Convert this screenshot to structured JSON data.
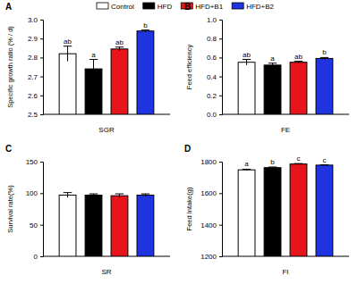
{
  "chart_data": [
    {
      "type": "bar",
      "title": "A",
      "x_label": "SGR",
      "y_label": "Specific growth ratio (% / d)",
      "ylim": [
        2.5,
        3.0
      ],
      "yticks": [
        {
          "value": 2.5,
          "label": "2.5"
        },
        2.6,
        2.7,
        2.8,
        2.9,
        {
          "value": 3,
          "label": "3.0"
        }
      ],
      "legend": "top",
      "series": [
        {
          "name": "Control",
          "color": "#ffffff",
          "values": [
            2.82
          ],
          "errors": [
            0.04
          ],
          "letters": [
            "ab"
          ]
        },
        {
          "name": "HFD",
          "color": "#000000",
          "values": [
            2.74
          ],
          "errors": [
            0.05
          ],
          "letters": [
            "a"
          ]
        },
        {
          "name": "HFD+B1",
          "color": "#e8141c",
          "values": [
            2.845
          ],
          "errors": [
            0.01
          ],
          "letters": [
            "ab"
          ]
        },
        {
          "name": "HFD+B2",
          "color": "#1f33e0",
          "values": [
            2.94
          ],
          "errors": [
            0.005
          ],
          "letters": [
            "b"
          ]
        }
      ]
    },
    {
      "type": "bar",
      "title": "B",
      "x_label": "FE",
      "y_label": "Feed efficiency",
      "ylim": [
        0,
        1
      ],
      "yticks": [
        {
          "value": 0,
          "label": "0.0"
        },
        0.2,
        0.4,
        0.6,
        0.8,
        {
          "value": 1,
          "label": "1.0"
        }
      ],
      "series": [
        {
          "color": "#ffffff",
          "values": [
            0.55
          ],
          "errors": [
            0.03
          ],
          "letters": [
            "ab"
          ]
        },
        {
          "color": "#000000",
          "values": [
            0.52
          ],
          "errors": [
            0.02
          ],
          "letters": [
            "a"
          ]
        },
        {
          "color": "#e8141c",
          "values": [
            0.55
          ],
          "errors": [
            0.01
          ],
          "letters": [
            "ab"
          ]
        },
        {
          "color": "#1f33e0",
          "values": [
            0.59
          ],
          "errors": [
            0.01
          ],
          "letters": [
            "b"
          ]
        }
      ]
    },
    {
      "type": "bar",
      "title": "C",
      "x_label": "SR",
      "y_label": "Survival rate(%)",
      "ylim": [
        0,
        150
      ],
      "yticks": [
        0,
        50,
        100,
        150
      ],
      "series": [
        {
          "color": "#ffffff",
          "values": [
            97
          ],
          "errors": [
            4
          ]
        },
        {
          "color": "#000000",
          "values": [
            97
          ],
          "errors": [
            2
          ]
        },
        {
          "color": "#e8141c",
          "values": [
            96
          ],
          "errors": [
            3
          ]
        },
        {
          "color": "#1f33e0",
          "values": [
            97
          ],
          "errors": [
            2
          ]
        }
      ]
    },
    {
      "type": "bar",
      "title": "D",
      "x_label": "FI",
      "y_label": "Feed Intake(g)",
      "ylim": [
        1200,
        1800
      ],
      "yticks": [
        1200,
        1400,
        1600,
        1800
      ],
      "series": [
        {
          "color": "#ffffff",
          "values": [
            1748
          ],
          "errors": [
            4
          ],
          "letters": [
            "a"
          ]
        },
        {
          "color": "#000000",
          "values": [
            1762
          ],
          "errors": [
            4
          ],
          "letters": [
            "b"
          ]
        },
        {
          "color": "#e8141c",
          "values": [
            1785
          ],
          "errors": [
            3
          ],
          "letters": [
            "c"
          ]
        },
        {
          "color": "#1f33e0",
          "values": [
            1778
          ],
          "errors": [
            2
          ],
          "letters": [
            "c"
          ]
        }
      ]
    }
  ]
}
